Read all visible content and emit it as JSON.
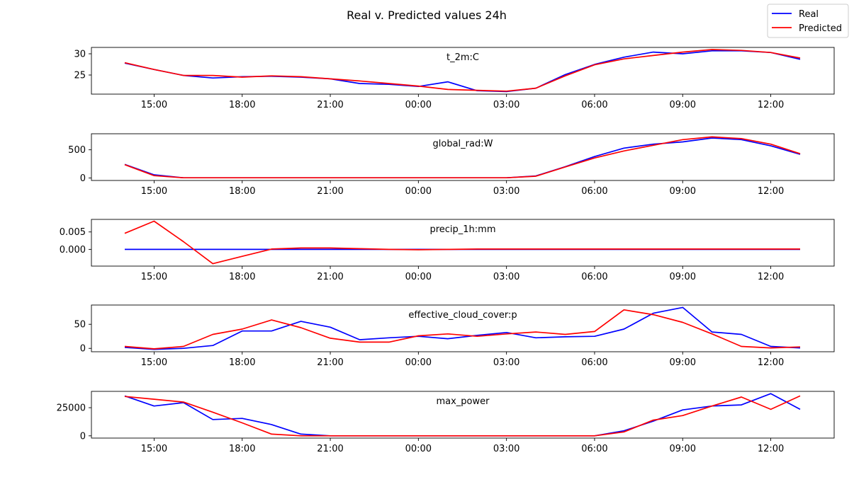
{
  "title": "Real v. Predicted values 24h",
  "legend": {
    "placement": "top-right",
    "entries": [
      {
        "label": "Real",
        "color": "#0000ff"
      },
      {
        "label": "Predicted",
        "color": "#ff0000"
      }
    ]
  },
  "chart_data": [
    {
      "type": "line",
      "title": "t_2m:C",
      "x": [
        "14:00",
        "15:00",
        "16:00",
        "17:00",
        "18:00",
        "19:00",
        "20:00",
        "21:00",
        "22:00",
        "23:00",
        "00:00",
        "01:00",
        "02:00",
        "03:00",
        "04:00",
        "05:00",
        "06:00",
        "07:00",
        "08:00",
        "09:00",
        "10:00",
        "11:00",
        "12:00",
        "13:00"
      ],
      "xticks": [
        "15:00",
        "18:00",
        "21:00",
        "00:00",
        "03:00",
        "06:00",
        "09:00",
        "12:00"
      ],
      "ylim": [
        20.5,
        31.5
      ],
      "yticks": [
        25,
        30
      ],
      "grid": false,
      "series": [
        {
          "name": "Real",
          "color": "#0000ff",
          "values": [
            27.8,
            26.3,
            24.9,
            24.3,
            24.6,
            24.7,
            24.5,
            24.1,
            23.0,
            22.8,
            22.3,
            23.4,
            21.3,
            21.1,
            21.9,
            25.1,
            27.5,
            29.2,
            30.4,
            30.0,
            30.7,
            30.7,
            30.3,
            28.7
          ]
        },
        {
          "name": "Predicted",
          "color": "#ff0000",
          "values": [
            27.9,
            26.3,
            24.9,
            24.9,
            24.5,
            24.8,
            24.6,
            24.1,
            23.6,
            23.0,
            22.4,
            21.6,
            21.4,
            21.2,
            21.9,
            24.8,
            27.4,
            28.8,
            29.6,
            30.4,
            31.0,
            30.8,
            30.3,
            29.0
          ]
        }
      ]
    },
    {
      "type": "line",
      "title": "global_rad:W",
      "x": [
        "14:00",
        "15:00",
        "16:00",
        "17:00",
        "18:00",
        "19:00",
        "20:00",
        "21:00",
        "22:00",
        "23:00",
        "00:00",
        "01:00",
        "02:00",
        "03:00",
        "04:00",
        "05:00",
        "06:00",
        "07:00",
        "08:00",
        "09:00",
        "10:00",
        "11:00",
        "12:00",
        "13:00"
      ],
      "xticks": [
        "15:00",
        "18:00",
        "21:00",
        "00:00",
        "03:00",
        "06:00",
        "09:00",
        "12:00"
      ],
      "ylim": [
        -45,
        785
      ],
      "yticks": [
        0,
        500
      ],
      "grid": false,
      "series": [
        {
          "name": "Real",
          "color": "#0000ff",
          "values": [
            240,
            55,
            3,
            3,
            3,
            3,
            3,
            3,
            3,
            3,
            3,
            3,
            3,
            3,
            35,
            200,
            380,
            530,
            600,
            640,
            710,
            680,
            570,
            420
          ]
        },
        {
          "name": "Predicted",
          "color": "#ff0000",
          "values": [
            235,
            40,
            3,
            3,
            3,
            3,
            3,
            3,
            3,
            3,
            3,
            3,
            3,
            3,
            30,
            195,
            355,
            480,
            580,
            680,
            730,
            700,
            600,
            430
          ]
        }
      ]
    },
    {
      "type": "line",
      "title": "precip_1h:mm",
      "x": [
        "14:00",
        "15:00",
        "16:00",
        "17:00",
        "18:00",
        "19:00",
        "20:00",
        "21:00",
        "22:00",
        "23:00",
        "00:00",
        "01:00",
        "02:00",
        "03:00",
        "04:00",
        "05:00",
        "06:00",
        "07:00",
        "08:00",
        "09:00",
        "10:00",
        "11:00",
        "12:00",
        "13:00"
      ],
      "xticks": [
        "15:00",
        "18:00",
        "21:00",
        "00:00",
        "03:00",
        "06:00",
        "09:00",
        "12:00"
      ],
      "ylim": [
        -0.0048,
        0.0086
      ],
      "yticks": [
        0.0,
        0.005
      ],
      "ytick_labels": [
        "0.000",
        "0.005"
      ],
      "grid": false,
      "series": [
        {
          "name": "Real",
          "color": "#0000ff",
          "values": [
            0,
            0,
            0,
            0,
            0,
            0,
            0,
            0,
            0,
            0,
            0,
            0,
            0,
            0,
            0,
            0,
            0,
            0,
            0,
            0,
            0,
            0,
            0,
            0
          ]
        },
        {
          "name": "Predicted",
          "color": "#ff0000",
          "values": [
            0.0046,
            0.0081,
            0.0022,
            -0.0041,
            -0.002,
            0.0001,
            0.0004,
            0.0004,
            0.0002,
            0.0,
            -0.0001,
            0.0,
            0.0001,
            0.0001,
            0.0001,
            0.0001,
            0.0001,
            0.0001,
            0.0001,
            0.0001,
            0.0001,
            0.0001,
            0.0001,
            0.0001
          ]
        }
      ]
    },
    {
      "type": "line",
      "title": "effective_cloud_cover:p",
      "x": [
        "14:00",
        "15:00",
        "16:00",
        "17:00",
        "18:00",
        "19:00",
        "20:00",
        "21:00",
        "22:00",
        "23:00",
        "00:00",
        "01:00",
        "02:00",
        "03:00",
        "04:00",
        "05:00",
        "06:00",
        "07:00",
        "08:00",
        "09:00",
        "10:00",
        "11:00",
        "12:00",
        "13:00"
      ],
      "xticks": [
        "15:00",
        "18:00",
        "21:00",
        "00:00",
        "03:00",
        "06:00",
        "09:00",
        "12:00"
      ],
      "ylim": [
        -7,
        90
      ],
      "yticks": [
        0,
        50
      ],
      "grid": false,
      "series": [
        {
          "name": "Real",
          "color": "#0000ff",
          "values": [
            2,
            -2,
            0,
            6,
            36,
            36,
            56,
            44,
            18,
            22,
            25,
            20,
            27,
            33,
            22,
            24,
            25,
            40,
            73,
            85,
            34,
            29,
            4,
            1
          ]
        },
        {
          "name": "Predicted",
          "color": "#ff0000",
          "values": [
            4,
            -1,
            4,
            29,
            40,
            59,
            43,
            21,
            13,
            13,
            26,
            30,
            25,
            30,
            34,
            29,
            35,
            80,
            70,
            54,
            30,
            4,
            1,
            3
          ]
        }
      ]
    },
    {
      "type": "line",
      "title": "max_power",
      "x": [
        "14:00",
        "15:00",
        "16:00",
        "17:00",
        "18:00",
        "19:00",
        "20:00",
        "21:00",
        "22:00",
        "23:00",
        "00:00",
        "01:00",
        "02:00",
        "03:00",
        "04:00",
        "05:00",
        "06:00",
        "07:00",
        "08:00",
        "09:00",
        "10:00",
        "11:00",
        "12:00",
        "13:00"
      ],
      "xticks": [
        "15:00",
        "18:00",
        "21:00",
        "00:00",
        "03:00",
        "06:00",
        "09:00",
        "12:00"
      ],
      "ylim": [
        -2000,
        39500
      ],
      "yticks": [
        0,
        25000
      ],
      "grid": false,
      "series": [
        {
          "name": "Real",
          "color": "#0000ff",
          "values": [
            35500,
            26500,
            29500,
            14500,
            15500,
            10000,
            1500,
            0,
            0,
            0,
            0,
            0,
            0,
            0,
            0,
            0,
            0,
            4500,
            13000,
            23000,
            26500,
            27500,
            37500,
            23500
          ]
        },
        {
          "name": "Predicted",
          "color": "#ff0000",
          "values": [
            35000,
            32500,
            30000,
            21000,
            11500,
            1500,
            0,
            0,
            0,
            0,
            0,
            0,
            0,
            0,
            0,
            0,
            0,
            3500,
            14000,
            18000,
            26500,
            34500,
            23500,
            35500
          ]
        }
      ]
    }
  ]
}
